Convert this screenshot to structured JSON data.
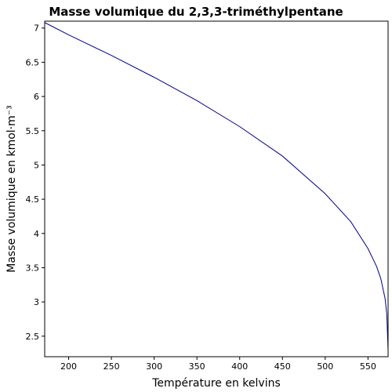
{
  "chart_data": {
    "type": "line",
    "title": "Masse volumique du 2,3,3-triméthylpentane",
    "xlabel": "Température en kelvins",
    "ylabel": "Masse volumique en kmol·m⁻³",
    "xlim": [
      172,
      573.5
    ],
    "ylim": [
      2.2,
      7.1
    ],
    "xticks": [
      200,
      250,
      300,
      350,
      400,
      450,
      500,
      550
    ],
    "yticks": [
      2.5,
      3,
      3.5,
      4,
      4.5,
      5,
      5.5,
      6,
      6.5,
      7
    ],
    "grid": false,
    "series": [
      {
        "color": "#00008b",
        "x": [
          172,
          200,
          250,
          300,
          350,
          400,
          450,
          500,
          530,
          550,
          560,
          565,
          570,
          572,
          573.5
        ],
        "y": [
          7.08,
          6.9,
          6.6,
          6.28,
          5.94,
          5.56,
          5.13,
          4.58,
          4.17,
          3.78,
          3.52,
          3.34,
          3.05,
          2.82,
          2.3
        ]
      }
    ]
  }
}
